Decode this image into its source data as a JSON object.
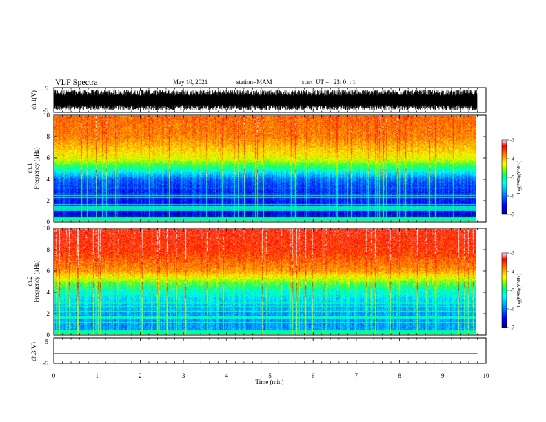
{
  "header": {
    "title": "VLF Spectra",
    "date": "May 10, 2021",
    "station": "station=MAM",
    "start": "start  UT =   23: 0  : 1"
  },
  "chart_data": [
    {
      "type": "line",
      "name": "ch1-waveform",
      "ylabel": "ch.1(V)",
      "ylim": [
        -5,
        5
      ],
      "yticks": [
        "5",
        "-5"
      ],
      "xlim": [
        0,
        10
      ],
      "note_values": "dense noise waveform spanning roughly -4 to +4 V over 0–9.8 min"
    },
    {
      "type": "heatmap",
      "name": "ch1-spectrogram",
      "ylabel": "ch.1\nFrequency (kHz)",
      "ylim": [
        0,
        10
      ],
      "yticks": [
        "0",
        "2",
        "4",
        "6",
        "8",
        "10"
      ],
      "xlim": [
        0,
        10
      ],
      "data_extent_min": 9.8,
      "colorbar": {
        "label": "log(PSD)(V²/Hz)",
        "range": [
          -7,
          -3
        ],
        "ticks": [
          "-3",
          "-4",
          "-5",
          "-6",
          "-7"
        ]
      },
      "approx_profile": {
        "freq_khz": [
          0,
          1,
          2,
          3,
          4,
          5,
          6,
          8,
          10
        ],
        "log_psd": [
          -6.6,
          -6.5,
          -6.4,
          -6.3,
          -6.0,
          -5.0,
          -4.3,
          -3.8,
          -3.7
        ]
      }
    },
    {
      "type": "heatmap",
      "name": "ch2-spectrogram",
      "ylabel": "ch.2\nFrequency (kHz)",
      "ylim": [
        0,
        10
      ],
      "yticks": [
        "0",
        "2",
        "4",
        "6",
        "8",
        "10"
      ],
      "xlim": [
        0,
        10
      ],
      "data_extent_min": 9.8,
      "colorbar": {
        "label": "log(PSD)(V²/Hz)",
        "range": [
          -7,
          -3
        ],
        "ticks": [
          "-3",
          "-4",
          "-5",
          "-6",
          "-7"
        ]
      },
      "approx_profile": {
        "freq_khz": [
          0,
          1,
          2,
          3,
          4,
          5,
          6,
          8,
          10
        ],
        "log_psd": [
          -5.8,
          -5.8,
          -5.8,
          -5.6,
          -5.2,
          -4.6,
          -3.9,
          -3.5,
          -3.4
        ]
      }
    },
    {
      "type": "line",
      "name": "ch3-waveform",
      "ylabel": "ch.3(V)",
      "ylim": [
        -5,
        5
      ],
      "yticks": [
        "5",
        "-5"
      ],
      "xlim": [
        0,
        10
      ],
      "xlabel": "Time (min)",
      "xticks": [
        "0",
        "1",
        "2",
        "3",
        "4",
        "5",
        "6",
        "7",
        "8",
        "9",
        "10"
      ],
      "x": [
        0,
        9.8
      ],
      "values": [
        -1.2,
        -1.2
      ]
    }
  ],
  "colors": {
    "colormap": [
      "#000080",
      "#0000ff",
      "#00a0ff",
      "#00ffff",
      "#00ff80",
      "#80ff00",
      "#ffff00",
      "#ff8000",
      "#ff0000"
    ]
  }
}
